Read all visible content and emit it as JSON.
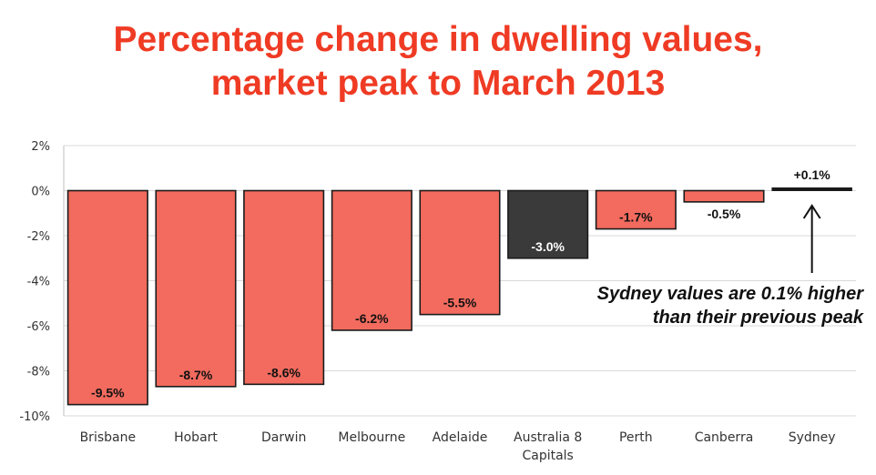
{
  "title_lines": [
    "Percentage change in dwelling values,",
    "market peak to March 2013"
  ],
  "annotation_lines": [
    "Sydney values are 0.1% higher",
    "than their previous peak"
  ],
  "colors": {
    "title": "#ef3b24",
    "bar": "#f26b5e",
    "bar_highlight": "#3a3a3a",
    "bar_border": "#1a1a1a",
    "grid": "#d9d9d9"
  },
  "chart_data": {
    "type": "bar",
    "title": "Percentage change in dwelling values, market peak to March 2013",
    "xlabel": "",
    "ylabel": "",
    "ylim": [
      -10,
      2
    ],
    "yticks": [
      2,
      0,
      -2,
      -4,
      -6,
      -8,
      -10
    ],
    "ytick_labels": [
      "2%",
      "0%",
      "-2%",
      "-4%",
      "-6%",
      "-8%",
      "-10%"
    ],
    "grid": true,
    "categories": [
      [
        "Brisbane"
      ],
      [
        "Hobart"
      ],
      [
        "Darwin"
      ],
      [
        "Melbourne"
      ],
      [
        "Adelaide"
      ],
      [
        "Australia 8",
        "Capitals"
      ],
      [
        "Perth"
      ],
      [
        "Canberra"
      ],
      [
        "Sydney"
      ]
    ],
    "values": [
      -9.5,
      -8.7,
      -8.6,
      -6.2,
      -5.5,
      -3.0,
      -1.7,
      -0.5,
      0.1
    ],
    "data_labels": [
      "-9.5%",
      "-8.7%",
      "-8.6%",
      "-6.2%",
      "-5.5%",
      "-3.0%",
      "-1.7%",
      "-0.5%",
      "+0.1%"
    ],
    "highlight_index": 5
  }
}
